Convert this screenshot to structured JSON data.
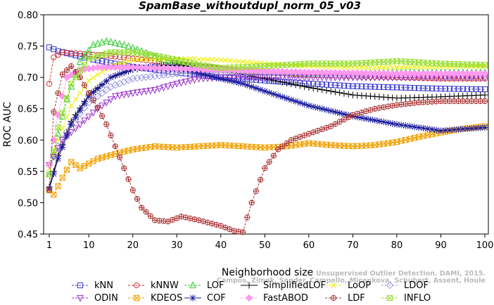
{
  "chart_data": {
    "type": "line",
    "title": "SpamBase_withoutdupl_norm_05_v03",
    "xlabel": "Neighborhood size",
    "ylabel": "ROC AUC",
    "xlim": [
      1,
      100
    ],
    "ylim": [
      0.45,
      0.8
    ],
    "xticks": [
      "1",
      "10",
      "20",
      "30",
      "40",
      "50",
      "60",
      "70",
      "80",
      "90",
      "100"
    ],
    "yticks": [
      "0.45",
      "0.50",
      "0.55",
      "0.60",
      "0.65",
      "0.70",
      "0.75",
      "0.80"
    ],
    "grid": false,
    "legend_position": "bottom",
    "credit_line1": "Unsupervised Outlier Detection. DAMI, 2015.",
    "credit_line2": "Campos, Zimek, Sander, Campello, Micenkova, Schubert, Assent, Houle",
    "series": [
      {
        "name": "kNN",
        "color": "#3a3ad0",
        "marker": "square",
        "dashed": true,
        "anchors": [
          [
            1,
            0.748
          ],
          [
            3,
            0.742
          ],
          [
            6,
            0.737
          ],
          [
            10,
            0.73
          ],
          [
            15,
            0.723
          ],
          [
            20,
            0.717
          ],
          [
            30,
            0.708
          ],
          [
            40,
            0.7
          ],
          [
            50,
            0.695
          ],
          [
            60,
            0.69
          ],
          [
            70,
            0.686
          ],
          [
            80,
            0.684
          ],
          [
            90,
            0.682
          ],
          [
            100,
            0.681
          ]
        ]
      },
      {
        "name": "kNNW",
        "color": "#d03030",
        "marker": "circle",
        "dashed": true,
        "anchors": [
          [
            1,
            0.69
          ],
          [
            2,
            0.732
          ],
          [
            4,
            0.74
          ],
          [
            8,
            0.738
          ],
          [
            15,
            0.734
          ],
          [
            20,
            0.73
          ],
          [
            30,
            0.722
          ],
          [
            40,
            0.714
          ],
          [
            50,
            0.708
          ],
          [
            60,
            0.704
          ],
          [
            70,
            0.702
          ],
          [
            80,
            0.7
          ],
          [
            90,
            0.698
          ],
          [
            100,
            0.698
          ]
        ]
      },
      {
        "name": "LOF",
        "color": "#33cc33",
        "marker": "triangle",
        "dashed": true,
        "anchors": [
          [
            1,
            0.545
          ],
          [
            3,
            0.61
          ],
          [
            5,
            0.665
          ],
          [
            8,
            0.725
          ],
          [
            11,
            0.752
          ],
          [
            14,
            0.758
          ],
          [
            18,
            0.752
          ],
          [
            22,
            0.742
          ],
          [
            26,
            0.73
          ],
          [
            30,
            0.722
          ],
          [
            40,
            0.712
          ],
          [
            50,
            0.708
          ],
          [
            60,
            0.706
          ],
          [
            70,
            0.707
          ],
          [
            80,
            0.708
          ],
          [
            90,
            0.708
          ],
          [
            100,
            0.708
          ]
        ]
      },
      {
        "name": "SimplifiedLOF",
        "color": "#000000",
        "marker": "plus",
        "dashed": false,
        "anchors": [
          [
            1,
            0.525
          ],
          [
            3,
            0.575
          ],
          [
            6,
            0.63
          ],
          [
            10,
            0.672
          ],
          [
            15,
            0.7
          ],
          [
            20,
            0.712
          ],
          [
            25,
            0.718
          ],
          [
            30,
            0.72
          ],
          [
            40,
            0.712
          ],
          [
            50,
            0.698
          ],
          [
            60,
            0.684
          ],
          [
            70,
            0.672
          ],
          [
            80,
            0.667
          ],
          [
            90,
            0.669
          ],
          [
            100,
            0.672
          ]
        ]
      },
      {
        "name": "LoOP",
        "color": "#eeee00",
        "marker": "x",
        "dashed": true,
        "anchors": [
          [
            1,
            0.555
          ],
          [
            3,
            0.6
          ],
          [
            6,
            0.655
          ],
          [
            10,
            0.695
          ],
          [
            15,
            0.718
          ],
          [
            20,
            0.728
          ],
          [
            30,
            0.73
          ],
          [
            40,
            0.728
          ],
          [
            50,
            0.722
          ],
          [
            60,
            0.718
          ],
          [
            70,
            0.716
          ],
          [
            80,
            0.716
          ],
          [
            90,
            0.717
          ],
          [
            100,
            0.718
          ]
        ]
      },
      {
        "name": "LDOF",
        "color": "#a09ae0",
        "marker": "diamond",
        "dashed": true,
        "anchors": [
          [
            1,
            0.56
          ],
          [
            3,
            0.59
          ],
          [
            6,
            0.625
          ],
          [
            10,
            0.66
          ],
          [
            15,
            0.685
          ],
          [
            20,
            0.698
          ],
          [
            30,
            0.706
          ],
          [
            40,
            0.708
          ],
          [
            50,
            0.708
          ],
          [
            60,
            0.707
          ],
          [
            70,
            0.706
          ],
          [
            80,
            0.706
          ],
          [
            90,
            0.706
          ],
          [
            100,
            0.706
          ]
        ]
      },
      {
        "name": "ODIN",
        "color": "#9933cc",
        "marker": "triangle-down",
        "dashed": true,
        "anchors": [
          [
            1,
            0.56
          ],
          [
            4,
            0.6
          ],
          [
            8,
            0.625
          ],
          [
            12,
            0.65
          ],
          [
            16,
            0.67
          ],
          [
            20,
            0.675
          ],
          [
            25,
            0.68
          ],
          [
            30,
            0.69
          ],
          [
            35,
            0.698
          ],
          [
            40,
            0.7
          ],
          [
            50,
            0.7
          ],
          [
            60,
            0.7
          ],
          [
            70,
            0.7
          ],
          [
            80,
            0.7
          ],
          [
            90,
            0.7
          ],
          [
            100,
            0.7
          ]
        ]
      },
      {
        "name": "KDEOS",
        "color": "#f0a000",
        "marker": "boxx",
        "dashed": true,
        "anchors": [
          [
            1,
            0.52
          ],
          [
            2,
            0.513
          ],
          [
            4,
            0.54
          ],
          [
            6,
            0.565
          ],
          [
            8,
            0.555
          ],
          [
            12,
            0.57
          ],
          [
            16,
            0.578
          ],
          [
            20,
            0.585
          ],
          [
            25,
            0.59
          ],
          [
            30,
            0.588
          ],
          [
            40,
            0.592
          ],
          [
            50,
            0.588
          ],
          [
            55,
            0.59
          ],
          [
            60,
            0.595
          ],
          [
            65,
            0.592
          ],
          [
            70,
            0.59
          ],
          [
            75,
            0.592
          ],
          [
            80,
            0.597
          ],
          [
            85,
            0.605
          ],
          [
            90,
            0.612
          ],
          [
            95,
            0.618
          ],
          [
            100,
            0.622
          ]
        ]
      },
      {
        "name": "COF",
        "color": "#1a1a9e",
        "marker": "asterisk",
        "dashed": false,
        "anchors": [
          [
            1,
            0.522
          ],
          [
            3,
            0.57
          ],
          [
            6,
            0.625
          ],
          [
            10,
            0.67
          ],
          [
            15,
            0.7
          ],
          [
            20,
            0.714
          ],
          [
            25,
            0.718
          ],
          [
            30,
            0.715
          ],
          [
            40,
            0.698
          ],
          [
            45,
            0.69
          ],
          [
            50,
            0.678
          ],
          [
            60,
            0.655
          ],
          [
            70,
            0.638
          ],
          [
            80,
            0.625
          ],
          [
            90,
            0.615
          ],
          [
            100,
            0.62
          ]
        ]
      },
      {
        "name": "FastABOD",
        "color": "#ff99ee",
        "marker": "diamond-filled",
        "dashed": true,
        "anchors": [
          [
            1,
            0.56
          ],
          [
            3,
            0.64
          ],
          [
            5,
            0.7
          ],
          [
            8,
            0.712
          ],
          [
            12,
            0.716
          ],
          [
            20,
            0.716
          ],
          [
            30,
            0.714
          ],
          [
            40,
            0.712
          ],
          [
            50,
            0.71
          ],
          [
            60,
            0.708
          ],
          [
            70,
            0.707
          ],
          [
            80,
            0.706
          ],
          [
            90,
            0.706
          ],
          [
            100,
            0.706
          ]
        ]
      },
      {
        "name": "LDF",
        "color": "#aa3333",
        "marker": "circle-plus",
        "dashed": true,
        "anchors": [
          [
            1,
            0.52
          ],
          [
            2,
            0.645
          ],
          [
            4,
            0.705
          ],
          [
            6,
            0.718
          ],
          [
            8,
            0.7
          ],
          [
            10,
            0.675
          ],
          [
            12,
            0.652
          ],
          [
            14,
            0.625
          ],
          [
            16,
            0.59
          ],
          [
            18,
            0.555
          ],
          [
            20,
            0.52
          ],
          [
            22,
            0.492
          ],
          [
            25,
            0.472
          ],
          [
            28,
            0.47
          ],
          [
            31,
            0.478
          ],
          [
            35,
            0.472
          ],
          [
            40,
            0.463
          ],
          [
            43,
            0.455
          ],
          [
            45,
            0.453
          ],
          [
            47,
            0.5
          ],
          [
            50,
            0.555
          ],
          [
            53,
            0.585
          ],
          [
            56,
            0.6
          ],
          [
            60,
            0.61
          ],
          [
            65,
            0.622
          ],
          [
            70,
            0.64
          ],
          [
            75,
            0.65
          ],
          [
            80,
            0.656
          ],
          [
            85,
            0.66
          ],
          [
            90,
            0.662
          ],
          [
            95,
            0.662
          ],
          [
            100,
            0.662
          ]
        ]
      },
      {
        "name": "INFLO",
        "color": "#99dd33",
        "marker": "boxx",
        "dashed": true,
        "anchors": [
          [
            1,
            0.545
          ],
          [
            3,
            0.62
          ],
          [
            6,
            0.69
          ],
          [
            10,
            0.73
          ],
          [
            15,
            0.74
          ],
          [
            20,
            0.74
          ],
          [
            25,
            0.735
          ],
          [
            30,
            0.728
          ],
          [
            35,
            0.72
          ],
          [
            40,
            0.715
          ],
          [
            50,
            0.718
          ],
          [
            60,
            0.722
          ],
          [
            70,
            0.722
          ],
          [
            80,
            0.726
          ],
          [
            90,
            0.722
          ],
          [
            100,
            0.72
          ]
        ]
      }
    ]
  }
}
